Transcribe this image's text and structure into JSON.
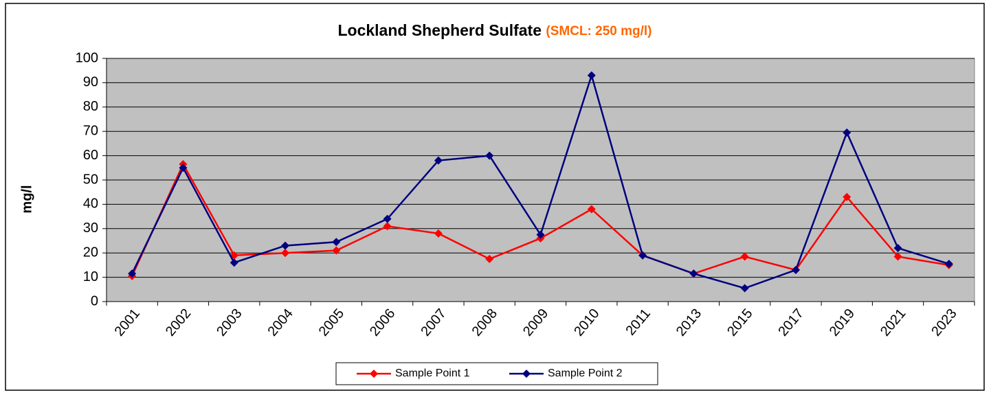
{
  "chart_data": {
    "type": "line",
    "title": "Lockland Shepherd Sulfate",
    "title_note": "(SMCL: 250 mg/l)",
    "title_note_color": "#ff6600",
    "y_label": "mg/l",
    "categories": [
      "2001",
      "2002",
      "2003",
      "2004",
      "2005",
      "2006",
      "2007",
      "2008",
      "2009",
      "2010",
      "2011",
      "2013",
      "2015",
      "2017",
      "2019",
      "2021",
      "2023"
    ],
    "series": [
      {
        "name": "Sample Point 1",
        "color": "#ff0000",
        "values": [
          10.5,
          56.5,
          19,
          20,
          21,
          31,
          28,
          17.5,
          26,
          38,
          19,
          11.5,
          18.5,
          13,
          43,
          18.5,
          15
        ]
      },
      {
        "name": "Sample Point 2",
        "color": "#000080",
        "values": [
          11.5,
          55,
          16,
          23,
          24.5,
          34,
          58,
          60,
          27.5,
          93,
          19,
          11.5,
          5.5,
          13,
          69.5,
          22,
          15.5
        ]
      }
    ],
    "ylim": [
      0,
      100
    ],
    "yticks": [
      0,
      10,
      20,
      30,
      40,
      50,
      60,
      70,
      80,
      90,
      100
    ],
    "grid": true,
    "plot_background": "#c0c0c0",
    "legend": "bottom"
  }
}
